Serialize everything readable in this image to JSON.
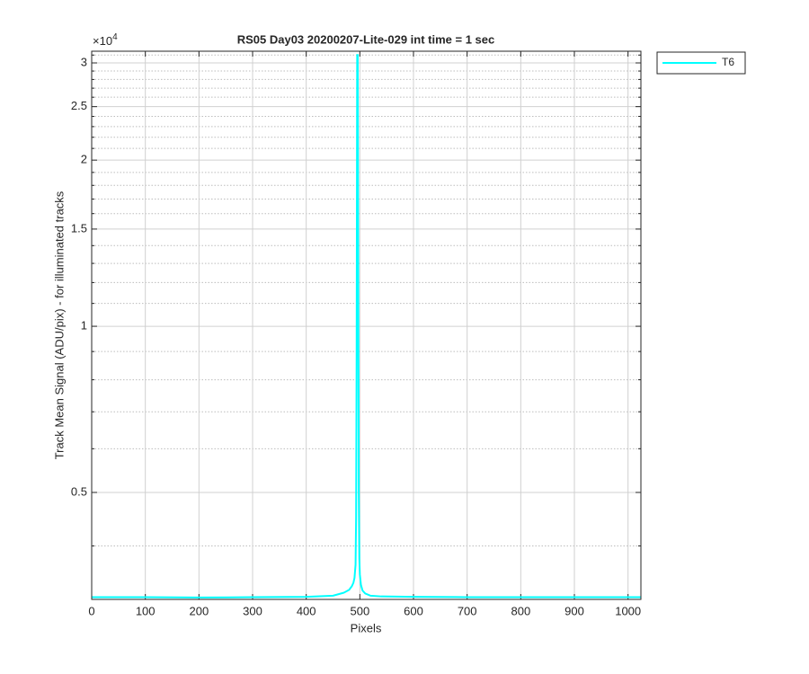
{
  "chart_data": {
    "type": "line",
    "title": "RS05 Day03 20200207-Lite-029 int time = 1 sec",
    "x_label": "Pixels",
    "y_label": "Track Mean Signal (ADU/pix) - for illuminated tracks",
    "y_exponent": {
      "base": "×10",
      "power": "4"
    },
    "x": [
      0,
      100,
      200,
      300,
      400,
      450,
      470,
      480,
      485,
      488,
      490,
      492,
      493,
      494,
      495,
      496,
      497,
      498,
      499,
      500,
      502,
      505,
      510,
      520,
      540,
      600,
      700,
      800,
      900,
      1000,
      1024
    ],
    "series": [
      {
        "name": "T6",
        "color": "#00ffff",
        "values": [
          3230,
          3230,
          3225,
          3230,
          3235,
          3250,
          3290,
          3330,
          3380,
          3430,
          3500,
          3700,
          4500,
          9000,
          31000,
          31000,
          12000,
          5000,
          3800,
          3550,
          3400,
          3320,
          3280,
          3250,
          3240,
          3235,
          3230,
          3230,
          3230,
          3230,
          3230
        ]
      }
    ],
    "xlim": [
      0,
      1024
    ],
    "xticks": [
      0,
      100,
      200,
      300,
      400,
      500,
      600,
      700,
      800,
      900,
      1000
    ],
    "ylim": [
      3200,
      31500
    ],
    "log_y": true,
    "yticks": [
      {
        "value": 5000,
        "label": "0.5"
      },
      {
        "value": 10000,
        "label": "1"
      },
      {
        "value": 15000,
        "label": "1.5"
      },
      {
        "value": 20000,
        "label": "2"
      },
      {
        "value": 25000,
        "label": "2.5"
      },
      {
        "value": 30000,
        "label": "3"
      }
    ],
    "minor_yticks": [
      4000,
      6000,
      7000,
      8000,
      9000,
      11000,
      12000,
      13000,
      14000,
      16000,
      17000,
      18000,
      19000,
      21000,
      22000,
      23000,
      24000,
      26000,
      27000,
      28000,
      29000,
      31000
    ],
    "grid": true,
    "legend": "outside-right"
  }
}
